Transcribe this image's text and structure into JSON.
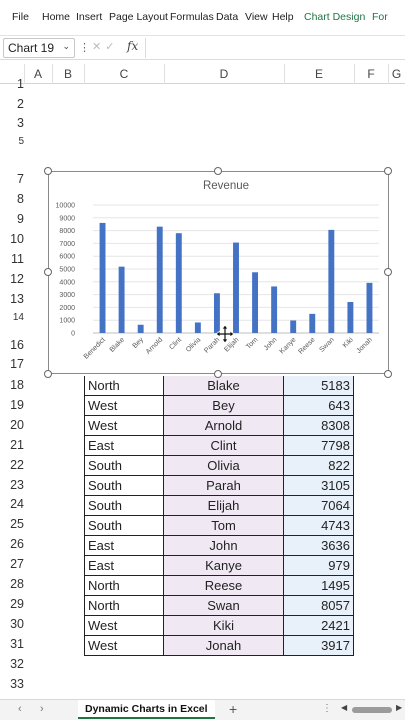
{
  "ribbon": {
    "tabs": [
      "File",
      "Home",
      "Insert",
      "Page Layout",
      "Formulas",
      "Data",
      "View",
      "Help",
      "Chart Design",
      "For"
    ]
  },
  "formula_bar": {
    "name_box": "Chart 19",
    "fx_label": "fx",
    "value": ""
  },
  "columns": [
    "A",
    "B",
    "C",
    "D",
    "E",
    "F",
    "G"
  ],
  "rows": [
    "1",
    "2",
    "3",
    "5",
    "7",
    "8",
    "9",
    "10",
    "11",
    "12",
    "13",
    "14",
    "16",
    "17",
    "18",
    "19",
    "20",
    "21",
    "22",
    "23",
    "24",
    "25",
    "26",
    "27",
    "28",
    "29",
    "30",
    "31",
    "32",
    "33"
  ],
  "table": [
    {
      "region": "North",
      "name": "Blake",
      "value": "5183"
    },
    {
      "region": "West",
      "name": "Bey",
      "value": "643"
    },
    {
      "region": "West",
      "name": "Arnold",
      "value": "8308"
    },
    {
      "region": "East",
      "name": "Clint",
      "value": "7798"
    },
    {
      "region": "South",
      "name": "Olivia",
      "value": "822"
    },
    {
      "region": "South",
      "name": "Parah",
      "value": "3105"
    },
    {
      "region": "South",
      "name": "Elijah",
      "value": "7064"
    },
    {
      "region": "South",
      "name": "Tom",
      "value": "4743"
    },
    {
      "region": "East",
      "name": "John",
      "value": "3636"
    },
    {
      "region": "East",
      "name": "Kanye",
      "value": "979"
    },
    {
      "region": "North",
      "name": "Reese",
      "value": "1495"
    },
    {
      "region": "North",
      "name": "Swan",
      "value": "8057"
    },
    {
      "region": "West",
      "name": "Kiki",
      "value": "2421"
    },
    {
      "region": "West",
      "name": "Jonah",
      "value": "3917"
    }
  ],
  "chart_data": {
    "type": "bar",
    "title": "Revenue",
    "categories": [
      "Benedict",
      "Blake",
      "Bey",
      "Arnold",
      "Clint",
      "Olivia",
      "Parah",
      "Elijah",
      "Tom",
      "John",
      "Kanye",
      "Reese",
      "Swan",
      "Kiki",
      "Jonah"
    ],
    "values": [
      8600,
      5183,
      643,
      8308,
      7798,
      822,
      3105,
      7064,
      4743,
      3636,
      979,
      1495,
      8057,
      2421,
      3917
    ],
    "ylim": [
      0,
      10000
    ],
    "yticks": [
      "0",
      "1000",
      "2000",
      "3000",
      "4000",
      "5000",
      "6000",
      "7000",
      "8000",
      "9000",
      "10000"
    ],
    "grid": true,
    "legend": "none",
    "bar_color": "#4472c4"
  },
  "sheet_tabs": {
    "active": "Dynamic Charts in Excel",
    "add_label": "+"
  },
  "colors": {
    "accent": "#217346",
    "name_fill": "#f0e9f4",
    "value_fill": "#e8f1f9"
  }
}
